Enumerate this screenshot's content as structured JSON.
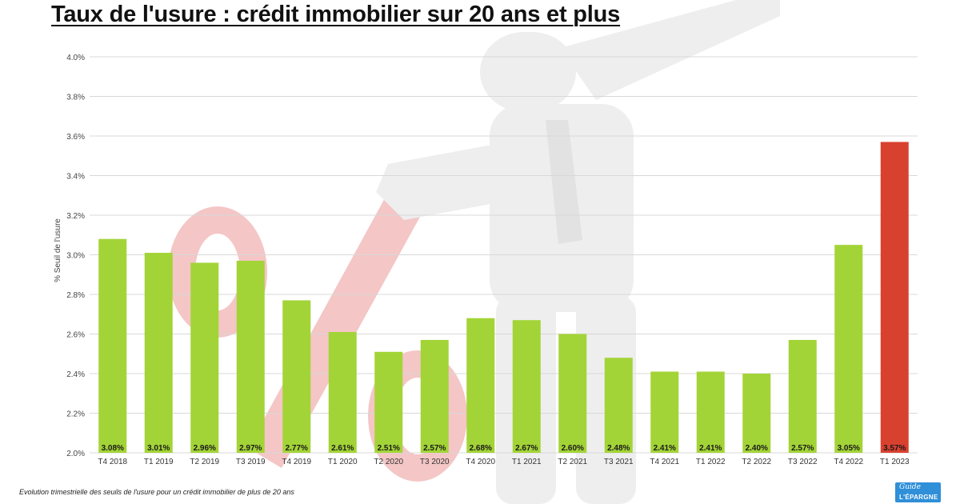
{
  "title": "Taux de l'usure : crédit immobilier sur 20 ans et plus",
  "caption": "Evolution trimestrielle des seuils de l'usure pour un crédit immobilier de plus de 20 ans",
  "logo": {
    "line1": "Guide",
    "line2": "L'ÉPARGNE"
  },
  "colors": {
    "bar": "#a3d437",
    "highlight": "#d9412f",
    "grid": "#d8d8d8",
    "watermark_percent": "#f4c6c6",
    "watermark_figure": "#eeeeee"
  },
  "background_image": {
    "description": "faded 3D figure leaning on a large percent sign",
    "icon": "percent-figure-icon"
  },
  "chart_data": {
    "type": "bar",
    "ylabel": "% Seuil de l'usure",
    "xlabel": "",
    "ylim": [
      2.0,
      4.0
    ],
    "yticks": [
      "2.0%",
      "2.2%",
      "2.4%",
      "2.6%",
      "2.8%",
      "3.0%",
      "3.2%",
      "3.4%",
      "3.6%",
      "3.8%",
      "4.0%"
    ],
    "grid": true,
    "categories": [
      "T4 2018",
      "T1 2019",
      "T2 2019",
      "T3 2019",
      "T4 2019",
      "T1 2020",
      "T2 2020",
      "T3 2020",
      "T4 2020",
      "T1 2021",
      "T2 2021",
      "T3 2021",
      "T4 2021",
      "T1 2022",
      "T2 2022",
      "T3 2022",
      "T4 2022",
      "T1 2023"
    ],
    "values": [
      3.08,
      3.01,
      2.96,
      2.97,
      2.77,
      2.61,
      2.51,
      2.57,
      2.68,
      2.67,
      2.6,
      2.48,
      2.41,
      2.41,
      2.4,
      2.57,
      3.05,
      3.57
    ],
    "data_labels": [
      "3.08%",
      "3.01%",
      "2.96%",
      "2.97%",
      "2.77%",
      "2.61%",
      "2.51%",
      "2.57%",
      "2.68%",
      "2.67%",
      "2.60%",
      "2.48%",
      "2.41%",
      "2.41%",
      "2.40%",
      "2.57%",
      "3.05%",
      "3.57%"
    ],
    "highlight_index": 17
  }
}
